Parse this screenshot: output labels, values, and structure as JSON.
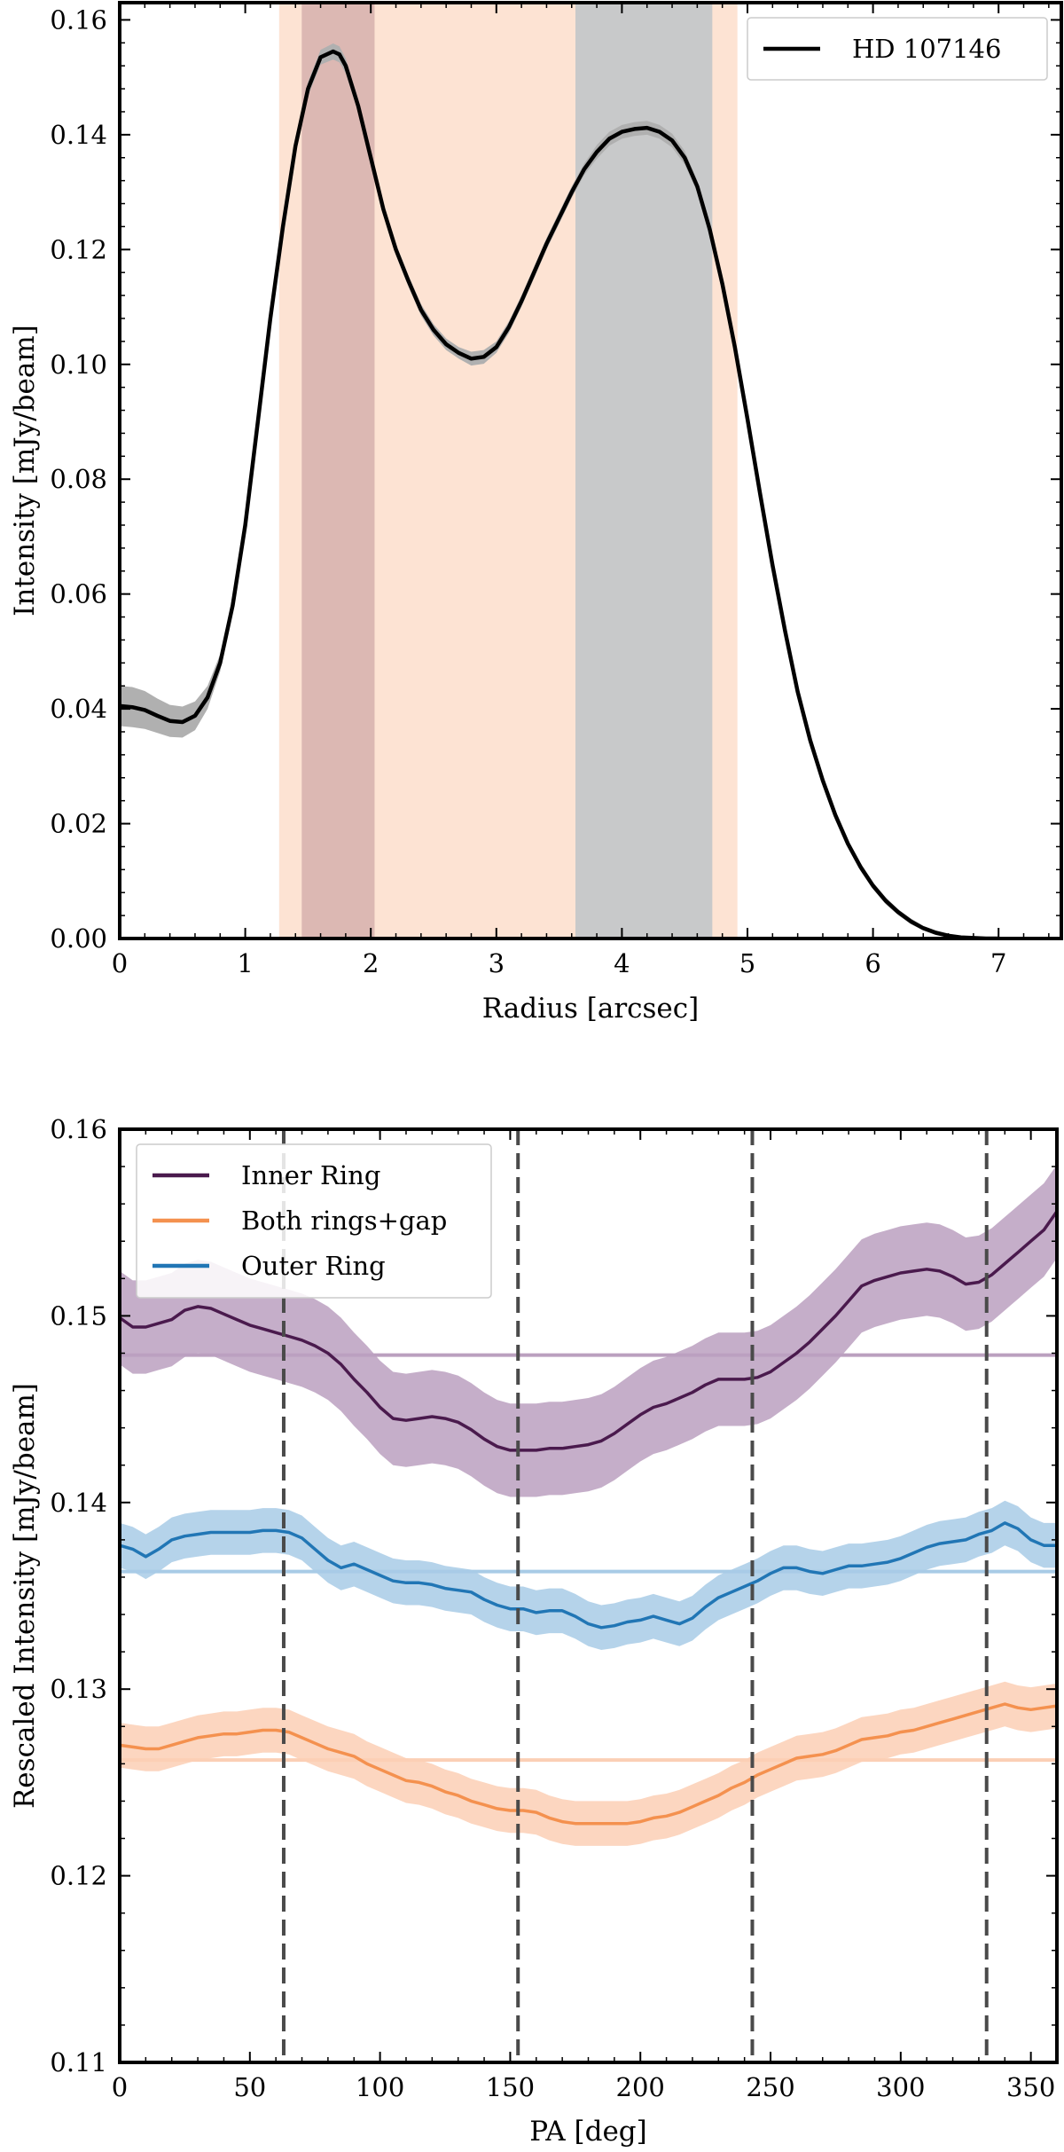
{
  "chart_data": [
    {
      "type": "line",
      "xlabel": "Radius [arcsec]",
      "ylabel": "Intensity [mJy/beam]",
      "xlim": [
        0,
        7.5
      ],
      "ylim": [
        0,
        0.163
      ],
      "xticks": [
        0,
        1,
        2,
        3,
        4,
        5,
        6,
        7
      ],
      "yticks": [
        0.0,
        0.02,
        0.04,
        0.06,
        0.08,
        0.1,
        0.12,
        0.14,
        0.16
      ],
      "ytick_labels": [
        "0.00",
        "0.02",
        "0.04",
        "0.06",
        "0.08",
        "0.10",
        "0.12",
        "0.14",
        "0.16"
      ],
      "legend": {
        "location": "top-right",
        "entries": [
          {
            "label": "HD 107146",
            "color": "#000000"
          }
        ]
      },
      "bands": [
        {
          "name": "both-rings-gap-band",
          "x0": 1.27,
          "x1": 4.92,
          "color": "#fde3d3"
        },
        {
          "name": "inner-ring-band",
          "x0": 1.45,
          "x1": 2.03,
          "color": "#dcb8b3"
        },
        {
          "name": "outer-ring-band",
          "x0": 3.63,
          "x1": 4.72,
          "color": "#c8c9ca"
        }
      ],
      "series": [
        {
          "name": "HD 107146",
          "color": "#000000",
          "band_color": "#b0b0b0",
          "x": [
            0,
            0.1,
            0.2,
            0.3,
            0.4,
            0.5,
            0.6,
            0.7,
            0.8,
            0.9,
            1.0,
            1.1,
            1.2,
            1.3,
            1.4,
            1.5,
            1.6,
            1.7,
            1.75,
            1.8,
            1.9,
            2.0,
            2.1,
            2.2,
            2.3,
            2.4,
            2.5,
            2.6,
            2.7,
            2.8,
            2.9,
            3.0,
            3.1,
            3.2,
            3.3,
            3.4,
            3.5,
            3.6,
            3.7,
            3.8,
            3.9,
            4.0,
            4.1,
            4.2,
            4.3,
            4.4,
            4.5,
            4.6,
            4.7,
            4.8,
            4.9,
            5.0,
            5.1,
            5.2,
            5.3,
            5.4,
            5.5,
            5.6,
            5.7,
            5.8,
            5.9,
            6.0,
            6.1,
            6.2,
            6.3,
            6.4,
            6.5,
            6.6,
            6.7,
            6.8,
            6.9,
            7.0
          ],
          "y": [
            0.0405,
            0.0403,
            0.0398,
            0.0388,
            0.0379,
            0.0377,
            0.0388,
            0.042,
            0.048,
            0.058,
            0.072,
            0.09,
            0.108,
            0.124,
            0.138,
            0.148,
            0.1535,
            0.1545,
            0.154,
            0.152,
            0.145,
            0.136,
            0.127,
            0.12,
            0.1145,
            0.1095,
            0.106,
            0.1035,
            0.102,
            0.101,
            0.1013,
            0.103,
            0.1065,
            0.111,
            0.116,
            0.121,
            0.1255,
            0.13,
            0.134,
            0.137,
            0.1393,
            0.1405,
            0.141,
            0.1412,
            0.1405,
            0.139,
            0.136,
            0.131,
            0.1235,
            0.114,
            0.103,
            0.0905,
            0.0775,
            0.065,
            0.0535,
            0.043,
            0.0345,
            0.0275,
            0.0215,
            0.0165,
            0.0125,
            0.0092,
            0.0066,
            0.0046,
            0.003,
            0.0018,
            0.001,
            0.0005,
            0.0002,
            0.0001,
            0.0,
            0.0
          ],
          "err": [
            0.0035,
            0.0035,
            0.0033,
            0.003,
            0.0028,
            0.0027,
            0.0025,
            0.002,
            0.0015,
            0.0012,
            0.001,
            0.001,
            0.001,
            0.001,
            0.001,
            0.0012,
            0.0013,
            0.0014,
            0.0014,
            0.0013,
            0.0012,
            0.001,
            0.001,
            0.001,
            0.001,
            0.001,
            0.001,
            0.001,
            0.001,
            0.0012,
            0.0012,
            0.001,
            0.001,
            0.001,
            0.001,
            0.001,
            0.001,
            0.001,
            0.001,
            0.0012,
            0.0012,
            0.0012,
            0.0012,
            0.0012,
            0.0012,
            0.0012,
            0.0012,
            0.001,
            0.001,
            0.001,
            0.001,
            0.001,
            0.001,
            0.001,
            0.001,
            0.0009,
            0.0009,
            0.0008,
            0.0008,
            0.0007,
            0.0007,
            0.0006,
            0.0006,
            0.0005,
            0.0005,
            0.0004,
            0.0004,
            0.0003,
            0.0003,
            0.0002,
            0.0002,
            0.0002
          ]
        }
      ]
    },
    {
      "type": "line",
      "xlabel": "PA [deg]",
      "ylabel": "Rescaled Intensity [mJy/beam]",
      "xlim": [
        0,
        360
      ],
      "ylim": [
        0.11,
        0.16
      ],
      "xticks": [
        0,
        50,
        100,
        150,
        200,
        250,
        300,
        350
      ],
      "yticks": [
        0.11,
        0.12,
        0.13,
        0.14,
        0.15,
        0.16
      ],
      "ytick_labels": [
        "0.11",
        "0.12",
        "0.13",
        "0.14",
        "0.15",
        "0.16"
      ],
      "vlines": [
        63,
        153,
        243,
        333
      ],
      "legend": {
        "location": "top-left",
        "entries": [
          {
            "label": "Inner Ring",
            "color": "#4a1a4d"
          },
          {
            "label": "Both rings+gap",
            "color": "#f4914f"
          },
          {
            "label": "Outer Ring",
            "color": "#2176b5"
          }
        ]
      },
      "series": [
        {
          "name": "Inner Ring",
          "color": "#4a1a4d",
          "band_color": "#bba0bf",
          "mean": 0.1479,
          "x": [
            0,
            5,
            10,
            15,
            20,
            25,
            30,
            35,
            40,
            45,
            50,
            55,
            60,
            65,
            70,
            75,
            80,
            85,
            90,
            95,
            100,
            105,
            110,
            115,
            120,
            125,
            130,
            135,
            140,
            145,
            150,
            155,
            160,
            165,
            170,
            175,
            180,
            185,
            190,
            195,
            200,
            205,
            210,
            215,
            220,
            225,
            230,
            235,
            240,
            245,
            250,
            255,
            260,
            265,
            270,
            275,
            280,
            285,
            290,
            295,
            300,
            305,
            310,
            315,
            320,
            325,
            330,
            335,
            340,
            345,
            350,
            355,
            360
          ],
          "y": [
            0.1499,
            0.1494,
            0.1494,
            0.1496,
            0.1498,
            0.1503,
            0.1505,
            0.1504,
            0.1501,
            0.1498,
            0.1495,
            0.1493,
            0.1491,
            0.1489,
            0.1487,
            0.1484,
            0.148,
            0.1474,
            0.1466,
            0.1459,
            0.1451,
            0.1445,
            0.1444,
            0.1445,
            0.1446,
            0.1445,
            0.1443,
            0.1439,
            0.1434,
            0.143,
            0.1428,
            0.1428,
            0.1428,
            0.1429,
            0.1429,
            0.143,
            0.1431,
            0.1433,
            0.1437,
            0.1442,
            0.1447,
            0.1451,
            0.1453,
            0.1456,
            0.1459,
            0.1463,
            0.1466,
            0.1466,
            0.1466,
            0.1467,
            0.147,
            0.1475,
            0.148,
            0.1486,
            0.1493,
            0.15,
            0.1508,
            0.1516,
            0.1519,
            0.1521,
            0.1523,
            0.1524,
            0.1525,
            0.1524,
            0.1521,
            0.1517,
            0.1518,
            0.1522,
            0.1528,
            0.1534,
            0.154,
            0.1546,
            0.1556
          ],
          "err": 0.0025
        },
        {
          "name": "Both rings+gap",
          "color": "#f4914f",
          "band_color": "#fbcfb5",
          "mean": 0.1262,
          "x": [
            0,
            5,
            10,
            15,
            20,
            25,
            30,
            35,
            40,
            45,
            50,
            55,
            60,
            65,
            70,
            75,
            80,
            85,
            90,
            95,
            100,
            105,
            110,
            115,
            120,
            125,
            130,
            135,
            140,
            145,
            150,
            155,
            160,
            165,
            170,
            175,
            180,
            185,
            190,
            195,
            200,
            205,
            210,
            215,
            220,
            225,
            230,
            235,
            240,
            245,
            250,
            255,
            260,
            265,
            270,
            275,
            280,
            285,
            290,
            295,
            300,
            305,
            310,
            315,
            320,
            325,
            330,
            335,
            340,
            345,
            350,
            355,
            360
          ],
          "y": [
            0.127,
            0.1269,
            0.1268,
            0.1268,
            0.127,
            0.1272,
            0.1274,
            0.1275,
            0.1276,
            0.1276,
            0.1277,
            0.1278,
            0.1278,
            0.1277,
            0.1274,
            0.1271,
            0.1268,
            0.1266,
            0.1264,
            0.126,
            0.1257,
            0.1254,
            0.1251,
            0.125,
            0.1248,
            0.1245,
            0.1243,
            0.124,
            0.1238,
            0.1236,
            0.1235,
            0.1235,
            0.1234,
            0.1231,
            0.1229,
            0.1228,
            0.1228,
            0.1228,
            0.1228,
            0.1228,
            0.1229,
            0.1231,
            0.1232,
            0.1234,
            0.1237,
            0.124,
            0.1243,
            0.1247,
            0.125,
            0.1254,
            0.1257,
            0.126,
            0.1263,
            0.1264,
            0.1265,
            0.1267,
            0.127,
            0.1273,
            0.1274,
            0.1275,
            0.1277,
            0.1278,
            0.128,
            0.1282,
            0.1284,
            0.1286,
            0.1288,
            0.129,
            0.1292,
            0.129,
            0.1289,
            0.129,
            0.1291
          ],
          "err": 0.0012
        },
        {
          "name": "Outer Ring",
          "color": "#2176b5",
          "band_color": "#a8cbe6",
          "mean": 0.1363,
          "x": [
            0,
            5,
            10,
            15,
            20,
            25,
            30,
            35,
            40,
            45,
            50,
            55,
            60,
            65,
            70,
            75,
            80,
            85,
            90,
            95,
            100,
            105,
            110,
            115,
            120,
            125,
            130,
            135,
            140,
            145,
            150,
            155,
            160,
            165,
            170,
            175,
            180,
            185,
            190,
            195,
            200,
            205,
            210,
            215,
            220,
            225,
            230,
            235,
            240,
            245,
            250,
            255,
            260,
            265,
            270,
            275,
            280,
            285,
            290,
            295,
            300,
            305,
            310,
            315,
            320,
            325,
            330,
            335,
            340,
            345,
            350,
            355,
            360
          ],
          "y": [
            0.1377,
            0.1375,
            0.1371,
            0.1375,
            0.138,
            0.1382,
            0.1383,
            0.1384,
            0.1384,
            0.1384,
            0.1384,
            0.1385,
            0.1385,
            0.1384,
            0.1381,
            0.1375,
            0.1369,
            0.1365,
            0.1367,
            0.1364,
            0.1361,
            0.1358,
            0.1357,
            0.1357,
            0.1356,
            0.1354,
            0.1353,
            0.1352,
            0.1348,
            0.1345,
            0.1343,
            0.1343,
            0.1341,
            0.1342,
            0.1342,
            0.1339,
            0.1335,
            0.1333,
            0.1334,
            0.1336,
            0.1337,
            0.1339,
            0.1337,
            0.1335,
            0.1338,
            0.1344,
            0.1349,
            0.1352,
            0.1355,
            0.1358,
            0.1362,
            0.1365,
            0.1365,
            0.1363,
            0.1362,
            0.1364,
            0.1366,
            0.1366,
            0.1367,
            0.1368,
            0.137,
            0.1373,
            0.1376,
            0.1378,
            0.1379,
            0.138,
            0.1383,
            0.1385,
            0.1389,
            0.1386,
            0.138,
            0.1377,
            0.1377
          ],
          "err": 0.0012
        }
      ]
    }
  ]
}
